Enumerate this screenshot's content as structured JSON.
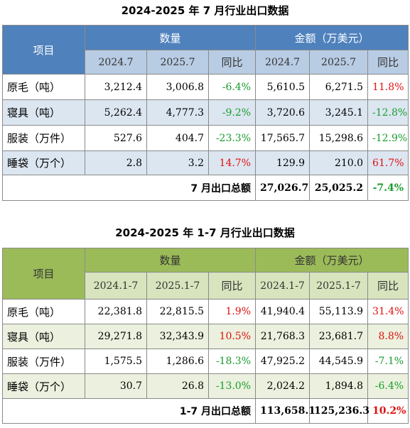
{
  "colors": {
    "table1_header": "#4f81bd",
    "table1_subheader": "#b8cce4",
    "table1_band": "#dce6f1",
    "table2_header": "#9bbb59",
    "table2_subheader": "#d7e4bd",
    "table2_band": "#ebf1de",
    "negative": "#1a9c2e",
    "positive": "#e01010"
  },
  "table1": {
    "title": "2024-2025 年 7 月行业出口数据",
    "item_header": "项目",
    "qty_header": "数量",
    "amount_header": "金额（万美元）",
    "sub": [
      "2024.7",
      "2025.7",
      "同比",
      "2024.7",
      "2025.7",
      "同比"
    ],
    "rows": [
      {
        "label": "原毛（吨）",
        "q1": "3,212.4",
        "q2": "3,006.8",
        "qy": "-6.4%",
        "a1": "5,610.5",
        "a2": "6,271.5",
        "ay": "11.8%"
      },
      {
        "label": "寝具（吨）",
        "q1": "5,262.4",
        "q2": "4,777.3",
        "qy": "-9.2%",
        "a1": "3,720.6",
        "a2": "3,245.1",
        "ay": "-12.8%"
      },
      {
        "label": "服装（万件）",
        "q1": "527.6",
        "q2": "404.7",
        "qy": "-23.3%",
        "a1": "17,565.7",
        "a2": "15,298.6",
        "ay": "-12.9%"
      },
      {
        "label": "睡袋（万个）",
        "q1": "2.8",
        "q2": "3.2",
        "qy": "14.7%",
        "a1": "129.9",
        "a2": "210.0",
        "ay": "61.7%"
      }
    ],
    "total": {
      "label": "7 月出口总额",
      "a1": "27,026.7",
      "a2": "25,025.2",
      "ay": "-7.4%"
    }
  },
  "table2": {
    "title": "2024-2025 年 1-7 月行业出口数据",
    "item_header": "项目",
    "qty_header": "数量",
    "amount_header": "金额（万美元）",
    "sub": [
      "2024.1-7",
      "2025.1-7",
      "同比",
      "2024.1-7",
      "2025.1-7",
      "同比"
    ],
    "rows": [
      {
        "label": "原毛（吨）",
        "q1": "22,381.8",
        "q2": "22,815.5",
        "qy": "1.9%",
        "a1": "41,940.4",
        "a2": "55,113.9",
        "ay": "31.4%"
      },
      {
        "label": "寝具（吨）",
        "q1": "29,271.8",
        "q2": "32,343.9",
        "qy": "10.5%",
        "a1": "21,768.3",
        "a2": "23,681.7",
        "ay": "8.8%"
      },
      {
        "label": "服装（万件）",
        "q1": "1,575.5",
        "q2": "1,286.6",
        "qy": "-18.3%",
        "a1": "47,925.2",
        "a2": "44,545.9",
        "ay": "-7.1%"
      },
      {
        "label": "睡袋（万个）",
        "q1": "30.7",
        "q2": "26.8",
        "qy": "-13.0%",
        "a1": "2,024.2",
        "a2": "1,894.8",
        "ay": "-6.4%"
      }
    ],
    "total": {
      "label": "1-7 月出口总额",
      "a1": "113,658.1",
      "a2": "125,236.3",
      "ay": "10.2%"
    }
  }
}
